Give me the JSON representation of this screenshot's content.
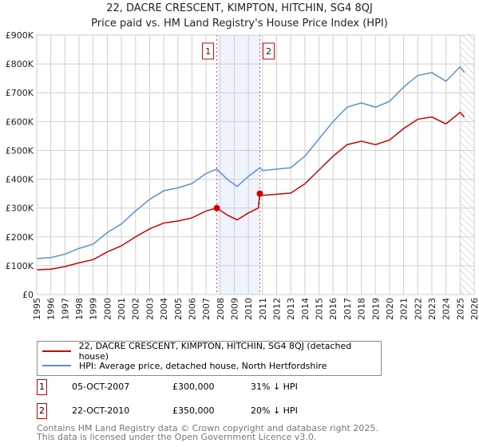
{
  "title": "22, DACRE CRESCENT, KIMPTON, HITCHIN, SG4 8QJ",
  "subtitle": "Price paid vs. HM Land Registry's House Price Index (HPI)",
  "chart_data": {
    "type": "line",
    "xlim": [
      1995,
      2026
    ],
    "ylim": [
      0,
      900000
    ],
    "yticks": [
      0,
      100000,
      200000,
      300000,
      400000,
      500000,
      600000,
      700000,
      800000,
      900000
    ],
    "ytick_labels": [
      "£0",
      "£100K",
      "£200K",
      "£300K",
      "£400K",
      "£500K",
      "£600K",
      "£700K",
      "£800K",
      "£900K"
    ],
    "xticks": [
      1995,
      1996,
      1997,
      1998,
      1999,
      2000,
      2001,
      2002,
      2003,
      2004,
      2005,
      2006,
      2007,
      2008,
      2009,
      2010,
      2011,
      2012,
      2013,
      2014,
      2015,
      2016,
      2017,
      2018,
      2019,
      2020,
      2021,
      2022,
      2023,
      2024,
      2025,
      2026
    ],
    "grid": true,
    "shaded_range": [
      2007.76,
      2010.81
    ],
    "forecast_hatch_from": 2025.0,
    "series": [
      {
        "name": "22, DACRE CRESCENT, KIMPTON, HITCHIN, SG4 8QJ (detached house)",
        "color": "#cc0000",
        "x": [
          1995,
          1996,
          1997,
          1998,
          1999,
          2000,
          2001,
          2002,
          2003,
          2004,
          2005,
          2006,
          2007,
          2007.76,
          2008.5,
          2009.2,
          2010,
          2010.7,
          2010.81,
          2011,
          2012,
          2013,
          2014,
          2015,
          2016,
          2017,
          2018,
          2019,
          2020,
          2021,
          2022,
          2023,
          2024,
          2025,
          2025.3
        ],
        "y": [
          86000,
          88000,
          97000,
          110000,
          121000,
          148000,
          169000,
          200000,
          228000,
          248000,
          255000,
          266000,
          290000,
          300000,
          276000,
          259000,
          283000,
          300000,
          350000,
          344000,
          348000,
          352000,
          384000,
          432000,
          480000,
          520000,
          532000,
          520000,
          536000,
          576000,
          608000,
          616000,
          592000,
          632000,
          616000
        ]
      },
      {
        "name": "HPI: Average price, detached house, North Hertfordshire",
        "color": "#5b8fd4",
        "x": [
          1995,
          1996,
          1997,
          1998,
          1999,
          2000,
          2001,
          2002,
          2003,
          2004,
          2005,
          2006,
          2007,
          2007.76,
          2008.5,
          2009.2,
          2010,
          2010.81,
          2011,
          2012,
          2013,
          2014,
          2015,
          2016,
          2017,
          2018,
          2019,
          2020,
          2021,
          2022,
          2023,
          2024,
          2025,
          2025.3
        ],
        "y": [
          125000,
          128000,
          140000,
          160000,
          175000,
          215000,
          245000,
          290000,
          330000,
          360000,
          370000,
          385000,
          420000,
          435000,
          400000,
          375000,
          410000,
          440000,
          430000,
          435000,
          440000,
          480000,
          540000,
          600000,
          650000,
          665000,
          650000,
          670000,
          720000,
          760000,
          770000,
          740000,
          790000,
          770000
        ]
      }
    ],
    "sales": [
      {
        "label": "1",
        "x": 2007.76,
        "y": 300000
      },
      {
        "label": "2",
        "x": 2010.81,
        "y": 350000
      }
    ]
  },
  "sales_table": [
    {
      "num": "1",
      "date": "05-OCT-2007",
      "price": "£300,000",
      "hpi": "31% ↓ HPI"
    },
    {
      "num": "2",
      "date": "22-OCT-2010",
      "price": "£350,000",
      "hpi": "20% ↓ HPI"
    }
  ],
  "footer": [
    "Contains HM Land Registry data © Crown copyright and database right 2025.",
    "This data is licensed under the Open Government Licence v3.0."
  ]
}
